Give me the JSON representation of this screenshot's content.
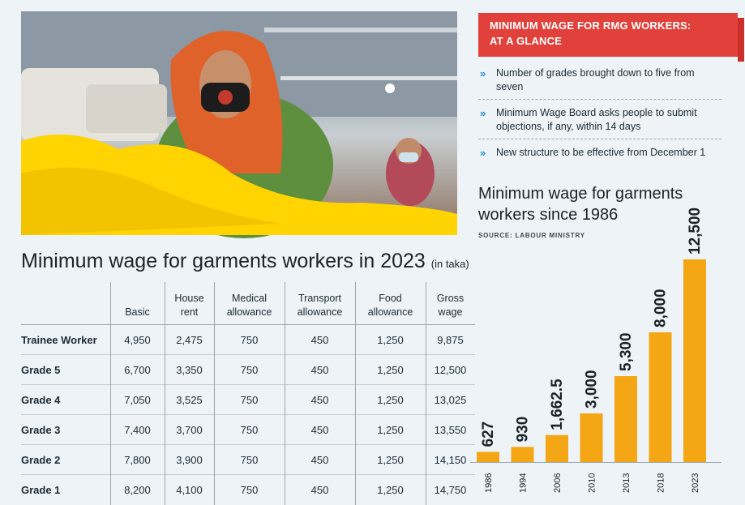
{
  "glance": {
    "heading_line1": "MINIMUM WAGE FOR RMG WORKERS:",
    "heading_line2": "AT A GLANCE",
    "items": [
      "Number of grades brought down to five from seven",
      "Minimum Wage Board asks people to submit objections, if any, within 14 days",
      "New structure to be effective from December 1"
    ]
  },
  "table": {
    "title": "Minimum wage for garments workers in 2023",
    "unit": "(in taka)",
    "headers": [
      "",
      "Basic",
      "House rent",
      "Medical allowance",
      "Transport allowance",
      "Food allowance",
      "Gross wage"
    ],
    "rows": [
      [
        "Trainee Worker",
        "4,950",
        "2,475",
        "750",
        "450",
        "1,250",
        "9,875"
      ],
      [
        "Grade 5",
        "6,700",
        "3,350",
        "750",
        "450",
        "1,250",
        "12,500"
      ],
      [
        "Grade 4",
        "7,050",
        "3,525",
        "750",
        "450",
        "1,250",
        "13,025"
      ],
      [
        "Grade 3",
        "7,400",
        "3,700",
        "750",
        "450",
        "1,250",
        "13,550"
      ],
      [
        "Grade 2",
        "7,800",
        "3,900",
        "750",
        "450",
        "1,250",
        "14,150"
      ],
      [
        "Grade 1",
        "8,200",
        "4,100",
        "750",
        "450",
        "1,250",
        "14,750"
      ]
    ]
  },
  "chart_data": {
    "type": "bar",
    "title": "Minimum wage for garments workers since 1986",
    "source": "SOURCE: LABOUR MINISTRY",
    "categories": [
      "1986",
      "1994",
      "2006",
      "2010",
      "2013",
      "2018",
      "2023"
    ],
    "values": [
      627,
      930,
      1662.5,
      3000,
      5300,
      8000,
      12500
    ],
    "labels": [
      "627",
      "930",
      "1,662.5",
      "3,000",
      "5,300",
      "8,000",
      "12,500"
    ],
    "ylim": [
      0,
      12500
    ],
    "grid": false,
    "bar_color": "#f4a614"
  },
  "colors": {
    "accent_red": "#e2413b",
    "chevron_blue": "#1f8fd4"
  }
}
